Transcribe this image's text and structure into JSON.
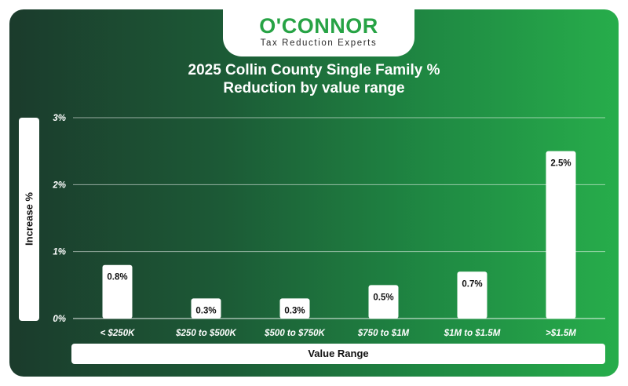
{
  "logo": {
    "name": "O'CONNOR",
    "tagline": "Tax Reduction Experts"
  },
  "colors": {
    "brand_green": "#27a345",
    "bar": "#ffffff",
    "gridline": "#ffffff"
  },
  "chart_data": {
    "type": "bar",
    "title_line1": "2025 Collin County Single Family %",
    "title_line2": "Reduction by value range",
    "xlabel": "Value Range",
    "ylabel": "Increase %",
    "categories": [
      "< $250K",
      "$250 to $500K",
      "$500 to $750K",
      "$750 to $1M",
      "$1M to $1.5M",
      ">$1.5M"
    ],
    "values": [
      0.8,
      0.3,
      0.3,
      0.5,
      0.7,
      2.5
    ],
    "data_labels": [
      "0.8%",
      "0.3%",
      "0.3%",
      "0.5%",
      "0.7%",
      "2.5%"
    ],
    "y_ticks": [
      0,
      1,
      2,
      3
    ],
    "y_tick_labels": [
      "0%",
      "1%",
      "2%",
      "3%"
    ],
    "ylim": [
      0,
      3
    ],
    "grid": true,
    "legend": "none"
  }
}
